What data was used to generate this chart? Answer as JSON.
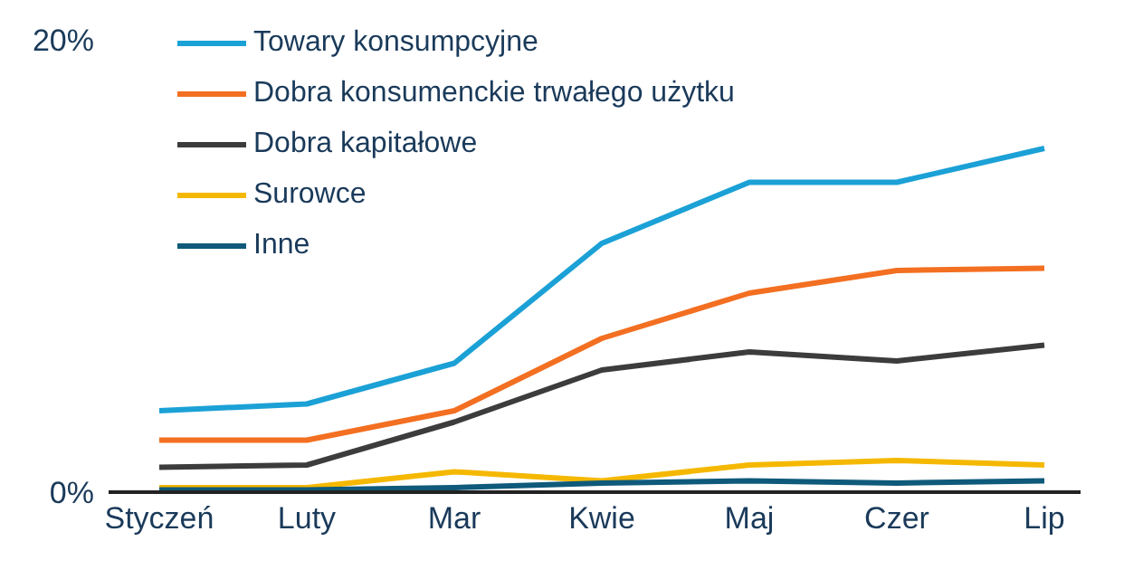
{
  "chart_data": {
    "type": "line",
    "categories": [
      "Styczeń",
      "Luty",
      "Mar",
      "Kwie",
      "Maj",
      "Czer",
      "Lip"
    ],
    "series": [
      {
        "name": "Towary konsumpcyjne",
        "color": "#1ba1d6",
        "values": [
          3.6,
          3.9,
          5.7,
          11.0,
          13.7,
          13.7,
          15.2
        ]
      },
      {
        "name": "Dobra konsumenckie trwałego użytku",
        "color": "#f36f21",
        "values": [
          2.3,
          2.3,
          3.6,
          6.8,
          8.8,
          9.8,
          9.9
        ]
      },
      {
        "name": "Dobra kapitałowe",
        "color": "#3c3c3c",
        "values": [
          1.1,
          1.2,
          3.1,
          5.4,
          6.2,
          5.8,
          6.5
        ]
      },
      {
        "name": "Surowce",
        "color": "#f5b800",
        "values": [
          0.2,
          0.2,
          0.9,
          0.5,
          1.2,
          1.4,
          1.2
        ]
      },
      {
        "name": "Inne",
        "color": "#0f5a7a",
        "values": [
          0.1,
          0.1,
          0.2,
          0.4,
          0.5,
          0.4,
          0.5
        ]
      }
    ],
    "ylim": [
      0,
      20
    ],
    "yticks": [
      {
        "value": 0,
        "label": "0%"
      },
      {
        "value": 20,
        "label": "20%"
      }
    ],
    "grid": false,
    "legend": "top left",
    "marker": "none",
    "line_style": "solid"
  }
}
